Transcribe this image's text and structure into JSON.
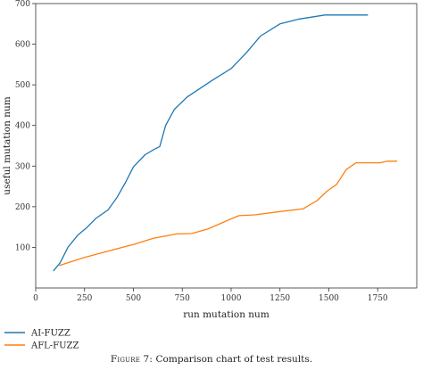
{
  "caption": {
    "figure_label": "Figure 7:",
    "text": "Comparison chart of test results."
  },
  "chart_data": {
    "type": "line",
    "xlabel": "run mutation num",
    "ylabel": "useful mutation num",
    "xlim": [
      0,
      1950
    ],
    "ylim": [
      0,
      700
    ],
    "xticks": [
      0,
      250,
      500,
      750,
      1000,
      1250,
      1500,
      1750
    ],
    "yticks": [
      100,
      200,
      300,
      400,
      500,
      600,
      700
    ],
    "grid": false,
    "legend_position": "bottom-left",
    "series": [
      {
        "name": "AI-FUZZ",
        "color": "#1f77b4",
        "points": [
          [
            90,
            42
          ],
          [
            125,
            62
          ],
          [
            165,
            100
          ],
          [
            215,
            130
          ],
          [
            260,
            148
          ],
          [
            310,
            172
          ],
          [
            370,
            192
          ],
          [
            415,
            222
          ],
          [
            460,
            260
          ],
          [
            500,
            298
          ],
          [
            560,
            328
          ],
          [
            610,
            342
          ],
          [
            635,
            348
          ],
          [
            665,
            400
          ],
          [
            710,
            440
          ],
          [
            775,
            470
          ],
          [
            900,
            510
          ],
          [
            1000,
            540
          ],
          [
            1080,
            580
          ],
          [
            1150,
            620
          ],
          [
            1250,
            650
          ],
          [
            1350,
            662
          ],
          [
            1480,
            672
          ],
          [
            1700,
            672
          ]
        ]
      },
      {
        "name": "AFL-FUZZ",
        "color": "#ff7f0e",
        "points": [
          [
            120,
            55
          ],
          [
            250,
            75
          ],
          [
            380,
            92
          ],
          [
            500,
            107
          ],
          [
            600,
            122
          ],
          [
            720,
            133
          ],
          [
            800,
            134
          ],
          [
            880,
            145
          ],
          [
            1000,
            170
          ],
          [
            1040,
            178
          ],
          [
            1120,
            180
          ],
          [
            1250,
            188
          ],
          [
            1370,
            195
          ],
          [
            1440,
            215
          ],
          [
            1490,
            238
          ],
          [
            1540,
            255
          ],
          [
            1590,
            292
          ],
          [
            1640,
            308
          ],
          [
            1760,
            308
          ],
          [
            1800,
            312
          ],
          [
            1850,
            312
          ]
        ]
      }
    ]
  }
}
